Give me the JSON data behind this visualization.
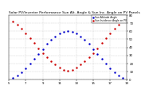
{
  "title": "Solar PV/Inverter Performance Sun Alt. Angle & Sun Inc. Angle on PV Panels",
  "legend_blue": "Sun Altitude Angle",
  "legend_red": "Sun Incidence Angle on PV",
  "blue_color": "#0000CC",
  "red_color": "#CC0000",
  "bg_color": "#ffffff",
  "grid_color": "#bbbbbb",
  "ylim": [
    0,
    80
  ],
  "xlim": [
    5,
    19
  ],
  "title_fontsize": 3.2,
  "tick_fontsize": 2.8,
  "x_ticks": [
    5,
    7,
    9,
    11,
    13,
    15,
    17,
    19
  ],
  "y_ticks": [
    0,
    10,
    20,
    30,
    40,
    50,
    60,
    70,
    80
  ],
  "blue_x": [
    5.5,
    6.0,
    6.5,
    7.0,
    7.5,
    8.0,
    8.5,
    9.0,
    9.5,
    10.0,
    10.5,
    11.0,
    11.5,
    12.0,
    12.5,
    13.0,
    13.5,
    14.0,
    14.5,
    15.0,
    15.5,
    16.0,
    16.5,
    17.0,
    17.5,
    18.0,
    18.5
  ],
  "blue_y": [
    2,
    5,
    9,
    14,
    20,
    26,
    32,
    38,
    44,
    49,
    53,
    57,
    59,
    60,
    59,
    57,
    53,
    49,
    44,
    38,
    32,
    26,
    20,
    14,
    9,
    5,
    2
  ],
  "red_x": [
    5.5,
    6.0,
    6.5,
    7.0,
    7.5,
    8.0,
    8.5,
    9.0,
    9.5,
    10.0,
    10.5,
    11.0,
    11.5,
    12.0,
    12.5,
    13.0,
    13.5,
    14.0,
    14.5,
    15.0,
    15.5,
    16.0,
    16.5,
    17.0,
    17.5,
    18.0,
    18.5
  ],
  "red_y": [
    72,
    68,
    63,
    57,
    51,
    45,
    39,
    33,
    28,
    23,
    19,
    15,
    12,
    11,
    12,
    15,
    19,
    23,
    28,
    33,
    39,
    45,
    51,
    57,
    63,
    68,
    72
  ]
}
